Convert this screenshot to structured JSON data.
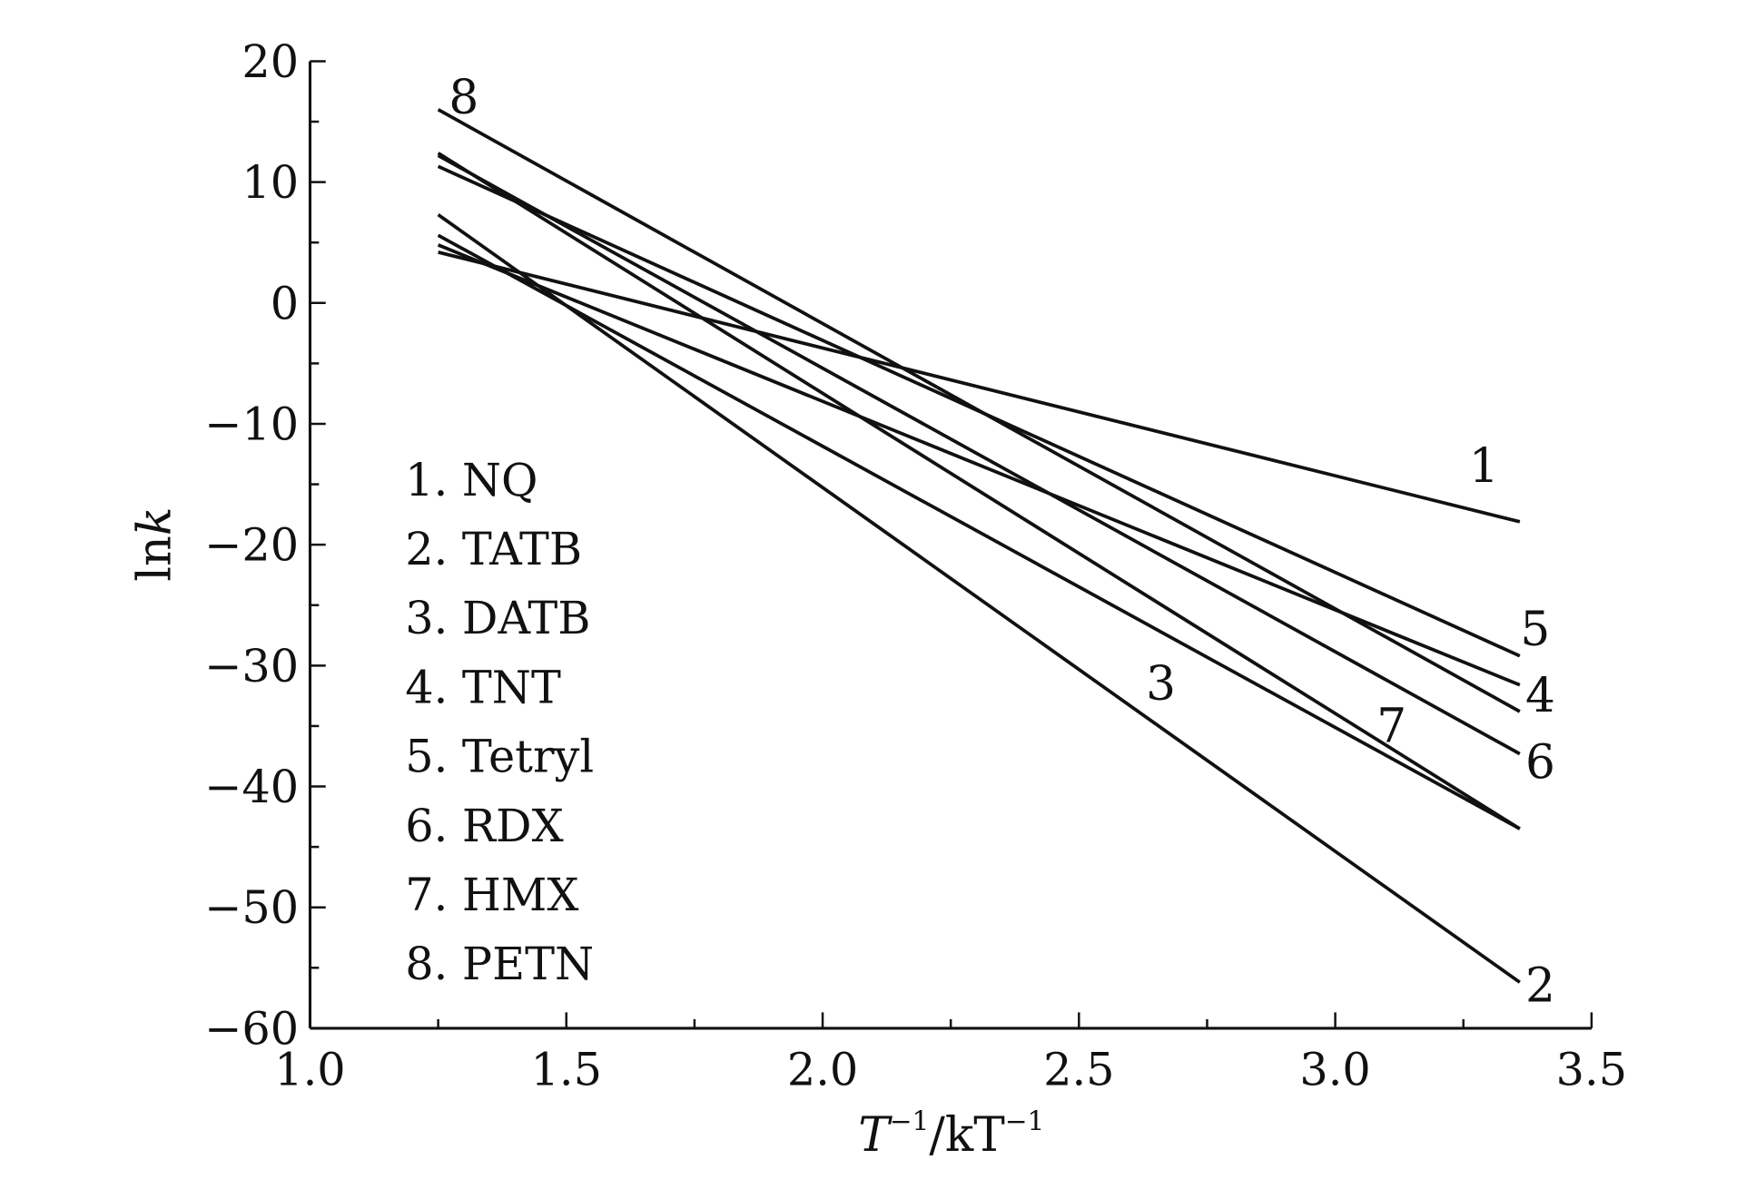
{
  "chart_data": {
    "type": "line",
    "title": "",
    "xlabel": {
      "main": "T",
      "sup1": "−1",
      "unit": "/kT",
      "sup2": "−1"
    },
    "ylabel": {
      "prefix": "ln",
      "var": "k"
    },
    "xlim": [
      1.0,
      3.5
    ],
    "ylim": [
      -60,
      20
    ],
    "x_ticks": [
      "1.0",
      "1.5",
      "2.0",
      "2.5",
      "3.0",
      "3.5"
    ],
    "y_ticks": [
      "20",
      "10",
      "0",
      "−10",
      "−20",
      "−30",
      "−40",
      "−50",
      "−60"
    ],
    "grid": false,
    "legend_placement": "lower-left",
    "legend": [
      "1. NQ",
      "2. TATB",
      "3. DATB",
      "4. TNT",
      "5. Tetryl",
      "6. RDX",
      "7. HMX",
      "8. PETN"
    ],
    "series": [
      {
        "name": "NQ",
        "label": "1",
        "x": [
          1.25,
          3.36
        ],
        "y": [
          4.2,
          -18.1
        ],
        "label_at": [
          3.29,
          -13.5
        ]
      },
      {
        "name": "TATB",
        "label": "2",
        "x": [
          1.25,
          3.36
        ],
        "y": [
          7.3,
          -56.2
        ],
        "label_at": [
          3.4,
          -56.5
        ]
      },
      {
        "name": "DATB",
        "label": "3",
        "x": [
          1.25,
          3.36
        ],
        "y": [
          5.6,
          -43.5
        ],
        "label_at": [
          2.66,
          -31.5
        ]
      },
      {
        "name": "TNT",
        "label": "4",
        "x": [
          1.25,
          3.36
        ],
        "y": [
          4.8,
          -31.6
        ],
        "label_at": [
          3.4,
          -32.5
        ]
      },
      {
        "name": "Tetryl",
        "label": "5",
        "x": [
          1.25,
          3.36
        ],
        "y": [
          11.3,
          -29.2
        ],
        "label_at": [
          3.39,
          -27
        ]
      },
      {
        "name": "RDX",
        "label": "6",
        "x": [
          1.25,
          3.36
        ],
        "y": [
          12.2,
          -37.3
        ],
        "label_at": [
          3.4,
          -38
        ]
      },
      {
        "name": "HMX",
        "label": "7",
        "x": [
          1.25,
          3.36
        ],
        "y": [
          12.4,
          -43.5
        ],
        "label_at": [
          3.11,
          -35
        ]
      },
      {
        "name": "PETN",
        "label": "8",
        "x": [
          1.25,
          3.36
        ],
        "y": [
          16.0,
          -33.8
        ],
        "label_at": [
          1.3,
          17
        ]
      }
    ]
  }
}
